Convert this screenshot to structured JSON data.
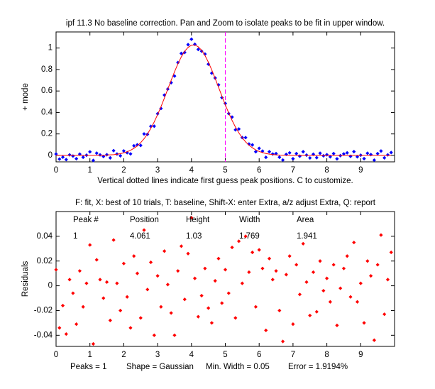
{
  "chart_data": [
    {
      "type": "scatter",
      "title": "ipf 11.3 No baseline correction. Pan and Zoom to isolate peaks to be fit in upper window.",
      "ylabel": "+ mode",
      "xlabel": "Vertical dotted lines indicate first guess peak positions. C to customize.",
      "xlim": [
        0,
        10
      ],
      "xticks": [
        0,
        1,
        2,
        3,
        4,
        5,
        6,
        7,
        8,
        9
      ],
      "ylim": [
        -0.06,
        1.15
      ],
      "yticks": [
        0,
        0.2,
        0.4,
        0.6,
        0.8,
        1
      ],
      "x": [
        0,
        0.1,
        0.2,
        0.3,
        0.4,
        0.5,
        0.6,
        0.7,
        0.8,
        0.9,
        1,
        1.1,
        1.2,
        1.3,
        1.4,
        1.5,
        1.6,
        1.7,
        1.8,
        1.9,
        2,
        2.1,
        2.2,
        2.3,
        2.4,
        2.5,
        2.6,
        2.7,
        2.8,
        2.9,
        3,
        3.1,
        3.2,
        3.3,
        3.4,
        3.5,
        3.6,
        3.7,
        3.8,
        3.9,
        4,
        4.1,
        4.2,
        4.3,
        4.4,
        4.5,
        4.6,
        4.7,
        4.8,
        4.9,
        5,
        5.1,
        5.2,
        5.3,
        5.4,
        5.5,
        5.6,
        5.7,
        5.8,
        5.9,
        6,
        6.1,
        6.2,
        6.3,
        6.4,
        6.5,
        6.6,
        6.7,
        6.8,
        6.9,
        7,
        7.1,
        7.2,
        7.3,
        7.4,
        7.5,
        7.6,
        7.7,
        7.8,
        7.9,
        8,
        8.1,
        8.2,
        8.3,
        8.4,
        8.5,
        8.6,
        8.7,
        8.8,
        8.9,
        9,
        9.1,
        9.2,
        9.3,
        9.4,
        9.5,
        9.6,
        9.7,
        9.8,
        9.9
      ],
      "series": [
        {
          "color": "#0000ff",
          "style": "marker",
          "values": [
            0.013,
            -0.034,
            -0.016,
            -0.039,
            0.005,
            -0.006,
            -0.031,
            0.012,
            -0.017,
            0.002,
            0.033,
            -0.047,
            0.021,
            0.005,
            -0.01,
            0.006,
            -0.023,
            0.044,
            0.013,
            -0.004,
            0.042,
            0.025,
            0.014,
            0.09,
            0.099,
            0.093,
            0.2,
            0.196,
            0.271,
            0.272,
            0.388,
            0.437,
            0.562,
            0.618,
            0.677,
            0.739,
            0.865,
            0.95,
            0.959,
            1.032,
            1.082,
            1.035,
            0.987,
            0.971,
            0.944,
            0.85,
            0.766,
            0.721,
            0.657,
            0.538,
            0.484,
            0.39,
            0.357,
            0.238,
            0.246,
            0.166,
            0.166,
            0.106,
            0.098,
            0.034,
            0.066,
            0.04,
            -0.018,
            0.034,
            0.013,
            0.017,
            -0.017,
            -0.043,
            0.01,
            0.024,
            -0.031,
            0.017,
            -0.007,
            0.034,
            0.003,
            -0.024,
            0.011,
            -0.021,
            0.02,
            -0.004,
            0.006,
            -0.013,
            0.017,
            -0.032,
            -0.002,
            0.014,
            0.024,
            -0.009,
            0.035,
            -0.013,
            0.002,
            -0.03,
            0.02,
            0.008,
            -0.044,
            0.017,
            0.041,
            -0.023,
            0.005,
            0.027
          ]
        },
        {
          "color": "#ff0000",
          "style": "line",
          "values": [
            0,
            0,
            0,
            0,
            0,
            0,
            0,
            0,
            0,
            0,
            0,
            0,
            0,
            0,
            0,
            0.003,
            0.005,
            0.007,
            0.011,
            0.016,
            0.024,
            0.034,
            0.048,
            0.066,
            0.089,
            0.119,
            0.155,
            0.199,
            0.252,
            0.312,
            0.38,
            0.454,
            0.534,
            0.617,
            0.699,
            0.779,
            0.853,
            0.918,
            0.97,
            1.006,
            1.027,
            1.029,
            1.012,
            0.979,
            0.93,
            0.868,
            0.796,
            0.717,
            0.635,
            0.552,
            0.471,
            0.396,
            0.326,
            0.264,
            0.21,
            0.164,
            0.126,
            0.095,
            0.071,
            0.051,
            0.037,
            0.026,
            0.018,
            0.012,
            0.008,
            0.005,
            0.003,
            0.002,
            0.001,
            0,
            0,
            0,
            0,
            0,
            0,
            0,
            0,
            0,
            0,
            0,
            0,
            0,
            0,
            0,
            0,
            0,
            0,
            0,
            0,
            0,
            0,
            0,
            0,
            0,
            0,
            0,
            0,
            0,
            0,
            0
          ]
        }
      ],
      "vline": {
        "x": 5,
        "color": "#ff00ff"
      }
    },
    {
      "type": "scatter",
      "title": "F: fit, X: best of 10 trials, T: baseline, Shift-X: enter Extra, a/z adjust Extra, Q: report",
      "ylabel": "Residuals",
      "xlim": [
        0,
        10
      ],
      "xticks": [
        0,
        1,
        2,
        3,
        4,
        5,
        6,
        7,
        8,
        9
      ],
      "ylim": [
        -0.049,
        0.06
      ],
      "yticks": [
        -0.04,
        -0.02,
        0,
        0.02,
        0.04
      ],
      "color": "#ff0000",
      "x": [
        0,
        0.1,
        0.2,
        0.3,
        0.4,
        0.5,
        0.6,
        0.7,
        0.8,
        0.9,
        1,
        1.1,
        1.2,
        1.3,
        1.4,
        1.5,
        1.6,
        1.7,
        1.8,
        1.9,
        2,
        2.1,
        2.2,
        2.3,
        2.4,
        2.5,
        2.6,
        2.7,
        2.8,
        2.9,
        3,
        3.1,
        3.2,
        3.3,
        3.4,
        3.5,
        3.6,
        3.7,
        3.8,
        3.9,
        4,
        4.1,
        4.2,
        4.3,
        4.4,
        4.5,
        4.6,
        4.7,
        4.8,
        4.9,
        5,
        5.1,
        5.2,
        5.3,
        5.4,
        5.5,
        5.6,
        5.7,
        5.8,
        5.9,
        6,
        6.1,
        6.2,
        6.3,
        6.4,
        6.5,
        6.6,
        6.7,
        6.8,
        6.9,
        7,
        7.1,
        7.2,
        7.3,
        7.4,
        7.5,
        7.6,
        7.7,
        7.8,
        7.9,
        8,
        8.1,
        8.2,
        8.3,
        8.4,
        8.5,
        8.6,
        8.7,
        8.8,
        8.9,
        9,
        9.1,
        9.2,
        9.3,
        9.4,
        9.5,
        9.6,
        9.7,
        9.8,
        9.9
      ],
      "values": [
        0.013,
        -0.034,
        -0.016,
        -0.039,
        0.005,
        -0.006,
        -0.031,
        0.012,
        -0.017,
        0.002,
        0.033,
        -0.047,
        0.021,
        0.005,
        -0.01,
        0.003,
        -0.028,
        0.037,
        0.002,
        -0.02,
        0.018,
        -0.009,
        -0.034,
        0.024,
        0.01,
        -0.026,
        0.045,
        -0.003,
        0.019,
        -0.04,
        0.008,
        -0.017,
        0.028,
        0.001,
        -0.022,
        -0.04,
        0.012,
        0.032,
        -0.011,
        0.026,
        0.055,
        0.006,
        -0.025,
        -0.008,
        0.014,
        -0.018,
        -0.03,
        0.004,
        0.022,
        -0.014,
        0.013,
        -0.006,
        0.031,
        -0.026,
        0.036,
        0.002,
        0.04,
        0.011,
        0.027,
        -0.017,
        0.029,
        0.014,
        -0.036,
        0.022,
        0.005,
        0.012,
        -0.02,
        -0.045,
        0.009,
        0.024,
        -0.031,
        0.017,
        -0.007,
        0.034,
        0.003,
        -0.024,
        0.011,
        -0.021,
        0.02,
        -0.004,
        0.006,
        -0.013,
        0.017,
        -0.032,
        -0.002,
        0.014,
        0.024,
        -0.009,
        0.035,
        -0.013,
        0.002,
        -0.03,
        0.02,
        0.008,
        -0.044,
        0.017,
        0.041,
        -0.023,
        0.005,
        0.027
      ],
      "table": {
        "header": [
          "Peak #",
          "Position",
          "Height",
          "Width",
          "Area"
        ],
        "rows": [
          [
            "1",
            "4.061",
            "1.03",
            "1.769",
            "1.941"
          ]
        ]
      },
      "footer": [
        "Peaks = 1",
        "Shape = Gaussian",
        "Min. Width = 0.05",
        "Error = 1.9194%"
      ]
    }
  ]
}
